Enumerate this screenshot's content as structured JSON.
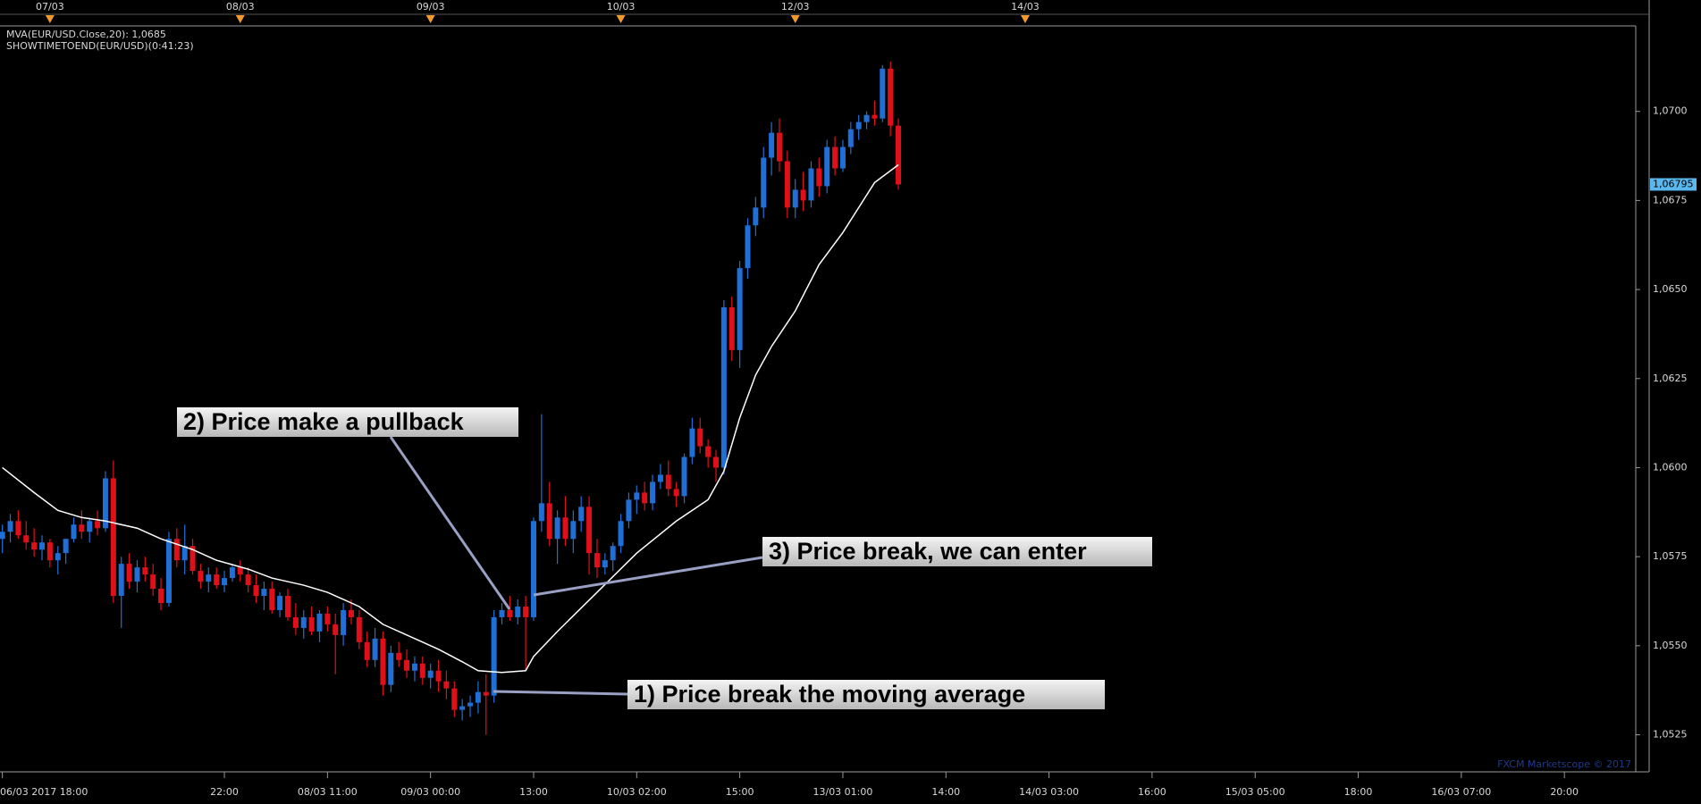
{
  "chart_data": {
    "type": "candlestick",
    "indicator_text": "MVA(EUR/USD.Close,20): 1,0685",
    "timer_text": "SHOWTIMETOEND(EUR/USD)(0:41:23)",
    "watermark": "FXCM Marketscope © 2017",
    "up_color": "#1f6fd6",
    "down_color": "#e0101a",
    "xlim": [
      -0.3,
      206
    ],
    "ylim": [
      1.05146,
      1.0724
    ],
    "yticks": [
      {
        "value": 1.0525,
        "label": "1,0525"
      },
      {
        "value": 1.055,
        "label": "1,0550"
      },
      {
        "value": 1.0575,
        "label": "1,0575"
      },
      {
        "value": 1.06,
        "label": "1,0600"
      },
      {
        "value": 1.0625,
        "label": "1,0625"
      },
      {
        "value": 1.065,
        "label": "1,0650"
      },
      {
        "value": 1.0675,
        "label": "1,0675"
      },
      {
        "value": 1.07,
        "label": "1,0700"
      }
    ],
    "current_price": {
      "value": 1.06795,
      "label": "1,06795"
    },
    "xticks": [
      {
        "value": 0,
        "label": "06/03 2017 18:00"
      },
      {
        "value": 28,
        "label": "22:00"
      },
      {
        "value": 41,
        "label": "08/03 11:00"
      },
      {
        "value": 54,
        "label": "09/03 00:00"
      },
      {
        "value": 67,
        "label": "13:00"
      },
      {
        "value": 80,
        "label": "10/03 02:00"
      },
      {
        "value": 93,
        "label": "15:00"
      },
      {
        "value": 106,
        "label": "13/03 01:00"
      },
      {
        "value": 119,
        "label": "14:00"
      },
      {
        "value": 132,
        "label": "14/03 03:00"
      },
      {
        "value": 145,
        "label": "16:00"
      },
      {
        "value": 158,
        "label": "15/03 05:00"
      },
      {
        "value": 171,
        "label": "18:00"
      },
      {
        "value": 184,
        "label": "16/03 07:00"
      },
      {
        "value": 197,
        "label": "20:00"
      }
    ],
    "x2ticks": [
      {
        "value": 6,
        "label": "07/03"
      },
      {
        "value": 30,
        "label": "08/03"
      },
      {
        "value": 54,
        "label": "09/03"
      },
      {
        "value": 78,
        "label": "10/03"
      },
      {
        "value": 100,
        "label": "12/03"
      },
      {
        "value": 129,
        "label": "14/03"
      }
    ],
    "candles": [
      [
        1.058,
        1.0584,
        1.0576,
        1.0582
      ],
      [
        1.0582,
        1.0587,
        1.0579,
        1.0585
      ],
      [
        1.0585,
        1.0588,
        1.058,
        1.0581
      ],
      [
        1.0581,
        1.0585,
        1.0577,
        1.0579
      ],
      [
        1.0579,
        1.0583,
        1.0575,
        1.0577
      ],
      [
        1.0577,
        1.0581,
        1.0574,
        1.0579
      ],
      [
        1.0579,
        1.058,
        1.0572,
        1.0574
      ],
      [
        1.0574,
        1.0578,
        1.057,
        1.0576
      ],
      [
        1.0576,
        1.058,
        1.0573,
        1.058
      ],
      [
        1.058,
        1.0586,
        1.0579,
        1.0584
      ],
      [
        1.0584,
        1.0588,
        1.058,
        1.0582
      ],
      [
        1.0582,
        1.0586,
        1.0579,
        1.0585
      ],
      [
        1.0585,
        1.0588,
        1.0581,
        1.0583
      ],
      [
        1.0583,
        1.0599,
        1.0582,
        1.0597
      ],
      [
        1.0597,
        1.0602,
        1.0562,
        1.0564
      ],
      [
        1.0564,
        1.0575,
        1.0555,
        1.0573
      ],
      [
        1.0573,
        1.0576,
        1.0566,
        1.0568
      ],
      [
        1.0568,
        1.0574,
        1.0565,
        1.0572
      ],
      [
        1.0572,
        1.0575,
        1.0568,
        1.057
      ],
      [
        1.057,
        1.0573,
        1.0564,
        1.0566
      ],
      [
        1.0566,
        1.0569,
        1.056,
        1.0562
      ],
      [
        1.0562,
        1.0582,
        1.0561,
        1.058
      ],
      [
        1.058,
        1.0583,
        1.0572,
        1.0574
      ],
      [
        1.0574,
        1.0584,
        1.057,
        1.0578
      ],
      [
        1.0578,
        1.058,
        1.057,
        1.0571
      ],
      [
        1.0571,
        1.0573,
        1.0566,
        1.0568
      ],
      [
        1.0568,
        1.0572,
        1.0565,
        1.057
      ],
      [
        1.057,
        1.0572,
        1.0566,
        1.0567
      ],
      [
        1.0567,
        1.0571,
        1.0565,
        1.0569
      ],
      [
        1.0569,
        1.0573,
        1.0568,
        1.0572
      ],
      [
        1.0572,
        1.0574,
        1.0568,
        1.057
      ],
      [
        1.057,
        1.0572,
        1.0565,
        1.0567
      ],
      [
        1.0567,
        1.057,
        1.0562,
        1.0564
      ],
      [
        1.0564,
        1.0568,
        1.056,
        1.0566
      ],
      [
        1.0566,
        1.0568,
        1.0559,
        1.056
      ],
      [
        1.056,
        1.0565,
        1.0558,
        1.0564
      ],
      [
        1.0564,
        1.0566,
        1.0557,
        1.0558
      ],
      [
        1.0558,
        1.0562,
        1.0553,
        1.0555
      ],
      [
        1.0555,
        1.056,
        1.0552,
        1.0558
      ],
      [
        1.0558,
        1.0561,
        1.0553,
        1.0554
      ],
      [
        1.0554,
        1.056,
        1.0551,
        1.0559
      ],
      [
        1.0559,
        1.0561,
        1.0554,
        1.0556
      ],
      [
        1.0556,
        1.0559,
        1.0542,
        1.0553
      ],
      [
        1.0553,
        1.0562,
        1.055,
        1.056
      ],
      [
        1.056,
        1.0563,
        1.0556,
        1.0558
      ],
      [
        1.0558,
        1.056,
        1.0549,
        1.0551
      ],
      [
        1.0551,
        1.0554,
        1.0544,
        1.0546
      ],
      [
        1.0546,
        1.0555,
        1.0544,
        1.0552
      ],
      [
        1.0552,
        1.0554,
        1.0536,
        1.0539
      ],
      [
        1.0539,
        1.055,
        1.0537,
        1.0548
      ],
      [
        1.0548,
        1.0551,
        1.0544,
        1.0546
      ],
      [
        1.0546,
        1.0549,
        1.0541,
        1.0543
      ],
      [
        1.0543,
        1.0547,
        1.054,
        1.0545
      ],
      [
        1.0545,
        1.0547,
        1.0539,
        1.0541
      ],
      [
        1.0541,
        1.0545,
        1.0538,
        1.0543
      ],
      [
        1.0543,
        1.0546,
        1.0537,
        1.054
      ],
      [
        1.054,
        1.0543,
        1.0535,
        1.0538
      ],
      [
        1.0538,
        1.054,
        1.053,
        1.0532
      ],
      [
        1.0532,
        1.0535,
        1.0529,
        1.0533
      ],
      [
        1.0533,
        1.0536,
        1.053,
        1.0534
      ],
      [
        1.0534,
        1.054,
        1.0531,
        1.0537
      ],
      [
        1.0537,
        1.0542,
        1.0525,
        1.0536
      ],
      [
        1.0536,
        1.056,
        1.0534,
        1.0558
      ],
      [
        1.0558,
        1.0562,
        1.0556,
        1.056
      ],
      [
        1.056,
        1.0564,
        1.0557,
        1.0558
      ],
      [
        1.0558,
        1.0563,
        1.0556,
        1.0561
      ],
      [
        1.0561,
        1.0564,
        1.0543,
        1.0558
      ],
      [
        1.0558,
        1.0586,
        1.0557,
        1.0585
      ],
      [
        1.0585,
        1.0615,
        1.0582,
        1.059
      ],
      [
        1.059,
        1.0596,
        1.0578,
        1.058
      ],
      [
        1.058,
        1.0588,
        1.0573,
        1.0586
      ],
      [
        1.0586,
        1.0592,
        1.0578,
        1.058
      ],
      [
        1.058,
        1.0588,
        1.0576,
        1.0585
      ],
      [
        1.0585,
        1.0592,
        1.0582,
        1.0589
      ],
      [
        1.0589,
        1.0592,
        1.057,
        1.0576
      ],
      [
        1.0576,
        1.058,
        1.0569,
        1.0572
      ],
      [
        1.0572,
        1.0576,
        1.057,
        1.0574
      ],
      [
        1.0574,
        1.0579,
        1.0571,
        1.0578
      ],
      [
        1.0578,
        1.0587,
        1.0576,
        1.0585
      ],
      [
        1.0585,
        1.0593,
        1.0583,
        1.0591
      ],
      [
        1.0591,
        1.0595,
        1.0587,
        1.0593
      ],
      [
        1.0593,
        1.0596,
        1.0588,
        1.059
      ],
      [
        1.059,
        1.0598,
        1.0588,
        1.0596
      ],
      [
        1.0596,
        1.0601,
        1.0594,
        1.0598
      ],
      [
        1.0598,
        1.0602,
        1.0592,
        1.0594
      ],
      [
        1.0594,
        1.0596,
        1.0589,
        1.0592
      ],
      [
        1.0592,
        1.0604,
        1.059,
        1.0603
      ],
      [
        1.0603,
        1.0614,
        1.0601,
        1.0611
      ],
      [
        1.0611,
        1.0614,
        1.0604,
        1.0606
      ],
      [
        1.0606,
        1.0608,
        1.06,
        1.0603
      ],
      [
        1.0603,
        1.0605,
        1.0596,
        1.06
      ],
      [
        1.06,
        1.0647,
        1.0598,
        1.0645
      ],
      [
        1.0645,
        1.0648,
        1.063,
        1.0633
      ],
      [
        1.0633,
        1.0658,
        1.0628,
        1.0656
      ],
      [
        1.0656,
        1.067,
        1.0653,
        1.0668
      ],
      [
        1.0668,
        1.0676,
        1.0665,
        1.0673
      ],
      [
        1.0673,
        1.069,
        1.067,
        1.0687
      ],
      [
        1.0687,
        1.0697,
        1.0682,
        1.0694
      ],
      [
        1.0694,
        1.0698,
        1.0683,
        1.0686
      ],
      [
        1.0686,
        1.0689,
        1.067,
        1.0673
      ],
      [
        1.0673,
        1.0681,
        1.067,
        1.0678
      ],
      [
        1.0678,
        1.0683,
        1.0672,
        1.0675
      ],
      [
        1.0675,
        1.0686,
        1.0673,
        1.0684
      ],
      [
        1.0684,
        1.0687,
        1.0676,
        1.0679
      ],
      [
        1.0679,
        1.0692,
        1.0677,
        1.069
      ],
      [
        1.069,
        1.0693,
        1.0682,
        1.0684
      ],
      [
        1.0684,
        1.0692,
        1.0683,
        1.069
      ],
      [
        1.069,
        1.0697,
        1.0688,
        1.0695
      ],
      [
        1.0695,
        1.0699,
        1.0692,
        1.0697
      ],
      [
        1.0697,
        1.07,
        1.0695,
        1.0699
      ],
      [
        1.0699,
        1.0703,
        1.0696,
        1.0698
      ],
      [
        1.0698,
        1.0713,
        1.0697,
        1.0712
      ],
      [
        1.0712,
        1.0714,
        1.0693,
        1.0696
      ],
      [
        1.0696,
        1.0698,
        1.0678,
        1.06795
      ]
    ],
    "moving_average": {
      "color": "#ffffff",
      "x": [
        0,
        4,
        7,
        10,
        13,
        17,
        20,
        24,
        27,
        31,
        34,
        38,
        41,
        45,
        48,
        52,
        55,
        58,
        60,
        63,
        66,
        67,
        70,
        75,
        80,
        85,
        89,
        91,
        93,
        95,
        97,
        100,
        103,
        106,
        108,
        110,
        113
      ],
      "values": [
        1.06,
        1.0593,
        1.0588,
        1.0586,
        1.0585,
        1.0583,
        1.058,
        1.0577,
        1.0574,
        1.05715,
        1.0569,
        1.0567,
        1.0565,
        1.0561,
        1.0556,
        1.0552,
        1.0549,
        1.05455,
        1.0543,
        1.05425,
        1.0543,
        1.0547,
        1.0554,
        1.0565,
        1.0576,
        1.0585,
        1.0591,
        1.0599,
        1.0614,
        1.0626,
        1.0634,
        1.0644,
        1.0657,
        1.0666,
        1.0673,
        1.068,
        1.0685
      ]
    },
    "annotations": [
      "1) Price break the moving average",
      "2) Price make a pullback",
      "3) Price break, we can enter"
    ]
  }
}
